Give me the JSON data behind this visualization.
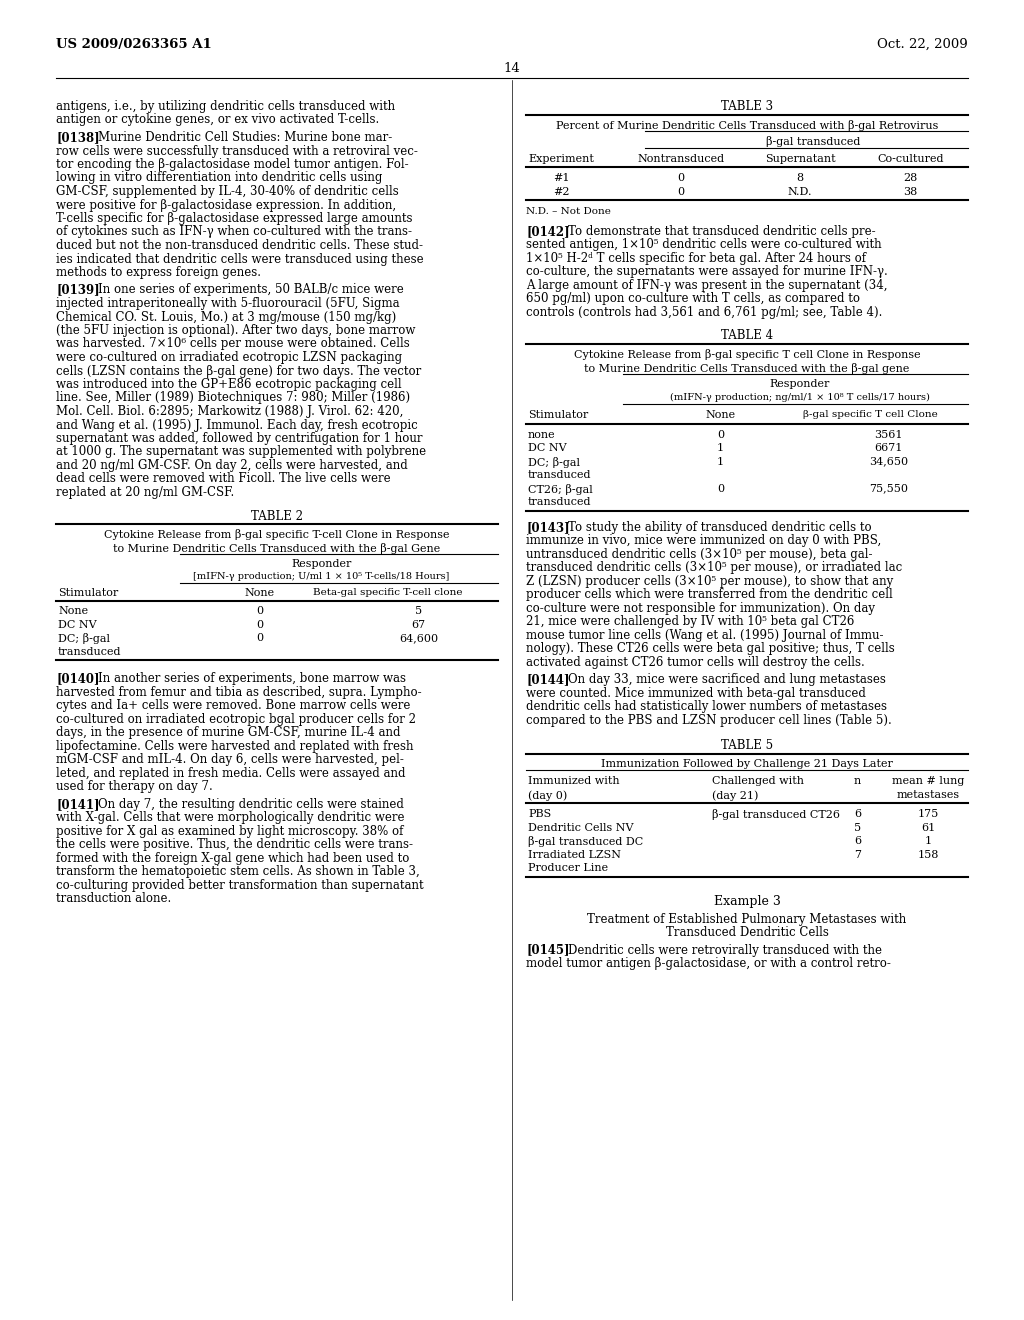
{
  "header_left": "US 2009/0263365 A1",
  "header_right": "Oct. 22, 2009",
  "page_number": "14",
  "background_color": "#ffffff",
  "left_col_paragraphs": [
    {
      "type": "plain",
      "lines": [
        "antigens, i.e., by utilizing dendritic cells transduced with",
        "antigen or cytokine genes, or ex vivo activated T-cells."
      ]
    },
    {
      "type": "tag",
      "tag": "[0138]",
      "lines": [
        "Murine Dendritic Cell Studies: Murine bone mar-",
        "row cells were successfully transduced with a retroviral vec-",
        "tor encoding the β-galactosidase model tumor antigen. Fol-",
        "lowing in vitro differentiation into dendritic cells using",
        "GM-CSF, supplemented by IL-4, 30-40% of dendritic cells",
        "were positive for β-galactosidase expression. In addition,",
        "T-cells specific for β-galactosidase expressed large amounts",
        "of cytokines such as IFN-γ when co-cultured with the trans-",
        "duced but not the non-transduced dendritic cells. These stud-",
        "ies indicated that dendritic cells were transduced using these",
        "methods to express foreign genes."
      ]
    },
    {
      "type": "tag",
      "tag": "[0139]",
      "lines": [
        "In one series of experiments, 50 BALB/c mice were",
        "injected intraperitoneally with 5-fluorouracil (5FU, Sigma",
        "Chemical CO. St. Louis, Mo.) at 3 mg/mouse (150 mg/kg)",
        "(the 5FU injection is optional). After two days, bone marrow",
        "was harvested. 7×10⁶ cells per mouse were obtained. Cells",
        "were co-cultured on irradiated ecotropic LZSN packaging",
        "cells (LZSN contains the β-gal gene) for two days. The vector",
        "was introduced into the GP+E86 ecotropic packaging cell",
        "line. See, Miller (1989) Biotechniques 7: 980; Miller (1986)",
        "Mol. Cell. Biol. 6:2895; Markowitz (1988) J. Virol. 62: 420,",
        "and Wang et al. (1995) J. Immunol. Each day, fresh ecotropic",
        "supernatant was added, followed by centrifugation for 1 hour",
        "at 1000 g. The supernatant was supplemented with polybrene",
        "and 20 ng/ml GM-CSF. On day 2, cells were harvested, and",
        "dead cells were removed with Ficoll. The live cells were",
        "replated at 20 ng/ml GM-CSF."
      ]
    },
    {
      "type": "tag",
      "tag": "[0140]",
      "lines": [
        "In another series of experiments, bone marrow was",
        "harvested from femur and tibia as described, supra. Lympho-",
        "cytes and Ia+ cells were removed. Bone marrow cells were",
        "co-cultured on irradiated ecotropic bgal producer cells for 2",
        "days, in the presence of murine GM-CSF, murine IL-4 and",
        "lipofectamine. Cells were harvested and replated with fresh",
        "mGM-CSF and mIL-4. On day 6, cells were harvested, pel-",
        "leted, and replated in fresh media. Cells were assayed and",
        "used for therapy on day 7."
      ]
    },
    {
      "type": "tag",
      "tag": "[0141]",
      "lines": [
        "On day 7, the resulting dendritic cells were stained",
        "with X-gal. Cells that were morphologically dendritic were",
        "positive for X gal as examined by light microscopy. 38% of",
        "the cells were positive. Thus, the dendritic cells were trans-",
        "formed with the foreign X-gal gene which had been used to",
        "transform the hematopoietic stem cells. As shown in Table 3,",
        "co-culturing provided better transformation than supernatant",
        "transduction alone."
      ]
    }
  ],
  "right_col_paragraphs": [
    {
      "type": "tag",
      "tag": "[0142]",
      "lines": [
        "To demonstrate that transduced dendritic cells pre-",
        "sented antigen, 1×10⁵ dendritic cells were co-cultured with",
        "1×10⁵ H-2ᵈ T cells specific for beta gal. After 24 hours of",
        "co-culture, the supernatants were assayed for murine IFN-γ.",
        "A large amount of IFN-γ was present in the supernatant (34,",
        "650 pg/ml) upon co-culture with T cells, as compared to",
        "controls (controls had 3,561 and 6,761 pg/ml; see, Table 4)."
      ]
    },
    {
      "type": "tag",
      "tag": "[0143]",
      "lines": [
        "To study the ability of transduced dendritic cells to",
        "immunize in vivo, mice were immunized on day 0 with PBS,",
        "untransduced dendritic cells (3×10⁵ per mouse), beta gal-",
        "transduced dendritic cells (3×10⁵ per mouse), or irradiated lac",
        "Z (LZSN) producer cells (3×10⁵ per mouse), to show that any",
        "producer cells which were transferred from the dendritic cell",
        "co-culture were not responsible for immunization). On day",
        "21, mice were challenged by IV with 10⁵ beta gal CT26",
        "mouse tumor line cells (Wang et al. (1995) Journal of Immu-",
        "nology). These CT26 cells were beta gal positive; thus, T cells",
        "activated against CT26 tumor cells will destroy the cells."
      ]
    },
    {
      "type": "tag",
      "tag": "[0144]",
      "lines": [
        "On day 33, mice were sacrificed and lung metastases",
        "were counted. Mice immunized with beta-gal transduced",
        "dendritic cells had statistically lower numbers of metastases",
        "compared to the PBS and LZSN producer cell lines (Table 5)."
      ]
    },
    {
      "type": "tag",
      "tag": "[0145]",
      "lines": [
        "Dendritic cells were retrovirally transduced with the",
        "model tumor antigen β-galactosidase, or with a control retro-"
      ]
    }
  ]
}
